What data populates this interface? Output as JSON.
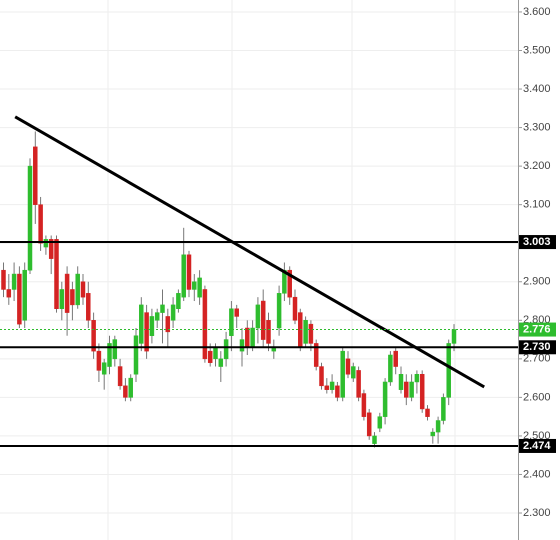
{
  "chart_data": {
    "type": "candlestick",
    "open": [
      2.93,
      2.88,
      2.88,
      2.92,
      2.8,
      2.93,
      3.25,
      3.1,
      2.99,
      3.01,
      3.01,
      2.83,
      2.92,
      2.88,
      2.84,
      2.9,
      2.87,
      2.8,
      2.72,
      2.66,
      2.68,
      2.7,
      2.68,
      2.63,
      2.6,
      2.66,
      2.74,
      2.82,
      2.76,
      2.8,
      2.82,
      2.81,
      2.8,
      2.83,
      2.86,
      2.97,
      2.88,
      2.86,
      2.88,
      2.72,
      2.7,
      2.68,
      2.7,
      2.76,
      2.83,
      2.72,
      2.78,
      2.73,
      2.78,
      2.85,
      2.8,
      2.72,
      2.78,
      2.87,
      2.93,
      2.86,
      2.82,
      2.74,
      2.79,
      2.74,
      2.68,
      2.63,
      2.62,
      2.63,
      2.6,
      2.7,
      2.65,
      2.67,
      2.61,
      2.56,
      2.48,
      2.52,
      2.55,
      2.64,
      2.72,
      2.62,
      2.64,
      2.6,
      2.64,
      2.66,
      2.57,
      2.5,
      2.51,
      2.54,
      2.6,
      2.74
    ],
    "high": [
      2.95,
      2.92,
      2.95,
      2.94,
      2.95,
      3.22,
      3.29,
      3.12,
      3.02,
      3.02,
      3.02,
      2.9,
      2.94,
      2.9,
      2.94,
      2.92,
      2.9,
      2.82,
      2.74,
      2.7,
      2.76,
      2.76,
      2.7,
      2.65,
      2.66,
      2.78,
      2.86,
      2.84,
      2.83,
      2.83,
      2.88,
      2.83,
      2.86,
      2.88,
      3.04,
      2.98,
      2.92,
      2.93,
      2.89,
      2.74,
      2.74,
      2.72,
      2.77,
      2.85,
      2.84,
      2.78,
      2.8,
      2.8,
      2.86,
      2.88,
      2.82,
      2.75,
      2.89,
      2.95,
      2.94,
      2.88,
      2.83,
      2.81,
      2.8,
      2.75,
      2.69,
      2.65,
      2.66,
      2.64,
      2.73,
      2.72,
      2.69,
      2.68,
      2.62,
      2.57,
      2.51,
      2.56,
      2.65,
      2.72,
      2.73,
      2.68,
      2.66,
      2.66,
      2.67,
      2.67,
      2.58,
      2.52,
      2.55,
      2.61,
      2.75,
      2.79
    ],
    "low": [
      2.86,
      2.84,
      2.85,
      2.78,
      2.78,
      2.92,
      3.05,
      2.98,
      2.97,
      2.92,
      2.82,
      2.8,
      2.76,
      2.8,
      2.83,
      2.84,
      2.78,
      2.7,
      2.64,
      2.62,
      2.66,
      2.68,
      2.62,
      2.59,
      2.59,
      2.64,
      2.72,
      2.7,
      2.74,
      2.78,
      2.74,
      2.73,
      2.78,
      2.82,
      2.85,
      2.86,
      2.85,
      2.84,
      2.69,
      2.68,
      2.68,
      2.64,
      2.68,
      2.72,
      2.78,
      2.68,
      2.71,
      2.72,
      2.74,
      2.73,
      2.72,
      2.7,
      2.76,
      2.85,
      2.84,
      2.79,
      2.72,
      2.73,
      2.72,
      2.67,
      2.62,
      2.61,
      2.61,
      2.59,
      2.59,
      2.65,
      2.64,
      2.59,
      2.54,
      2.49,
      2.47,
      2.51,
      2.53,
      2.63,
      2.66,
      2.61,
      2.58,
      2.59,
      2.61,
      2.56,
      2.54,
      2.48,
      2.48,
      2.53,
      2.58,
      2.72
    ],
    "close": [
      2.88,
      2.86,
      2.92,
      2.79,
      2.93,
      3.2,
      3.1,
      3.0,
      3.01,
      2.96,
      2.83,
      2.88,
      2.82,
      2.84,
      2.92,
      2.86,
      2.8,
      2.72,
      2.67,
      2.69,
      2.74,
      2.75,
      2.63,
      2.6,
      2.65,
      2.76,
      2.84,
      2.72,
      2.81,
      2.82,
      2.84,
      2.77,
      2.84,
      2.87,
      2.97,
      2.88,
      2.9,
      2.91,
      2.7,
      2.69,
      2.73,
      2.7,
      2.75,
      2.83,
      2.81,
      2.75,
      2.73,
      2.78,
      2.84,
      2.75,
      2.74,
      2.73,
      2.87,
      2.93,
      2.86,
      2.8,
      2.73,
      2.8,
      2.74,
      2.68,
      2.63,
      2.62,
      2.64,
      2.6,
      2.72,
      2.66,
      2.68,
      2.6,
      2.55,
      2.5,
      2.5,
      2.55,
      2.64,
      2.71,
      2.68,
      2.66,
      2.6,
      2.64,
      2.66,
      2.57,
      2.55,
      2.51,
      2.54,
      2.6,
      2.74,
      2.776
    ],
    "up_color": "#2ebd2e",
    "down_color": "#d42323",
    "ylim": [
      2.23,
      3.631
    ],
    "yticks": [
      {
        "value": 2.3,
        "label": "2.300"
      },
      {
        "value": 2.4,
        "label": "2.400"
      },
      {
        "value": 2.5,
        "label": "2.500"
      },
      {
        "value": 2.6,
        "label": "2.600"
      },
      {
        "value": 2.7,
        "label": "2.700"
      },
      {
        "value": 2.8,
        "label": "2.800"
      },
      {
        "value": 2.9,
        "label": "2.900"
      },
      {
        "value": 3.0,
        "label": "3.000"
      },
      {
        "value": 3.1,
        "label": "3.100"
      },
      {
        "value": 3.2,
        "label": "3.200"
      },
      {
        "value": 3.3,
        "label": "3.300"
      },
      {
        "value": 3.4,
        "label": "3.400"
      },
      {
        "value": 3.5,
        "label": "3.500"
      },
      {
        "value": 3.6,
        "label": "3.600"
      }
    ],
    "grid": true,
    "levels": [
      3.003,
      {
        "value": 2.73,
        "label": "2.730"
      },
      2.474
    ],
    "last_price": 2.776,
    "last_price_color": "#2ebd2e",
    "trendline": {
      "x": [
        2.2,
        90.7
      ],
      "y": [
        3.328,
        2.627
      ]
    }
  }
}
